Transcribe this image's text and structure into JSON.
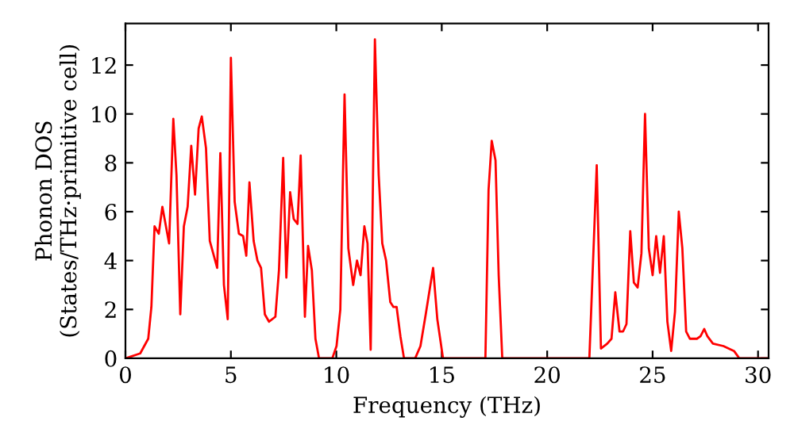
{
  "chart_data": {
    "type": "line",
    "xlabel": "Frequency (THz)",
    "ylabel": "Phonon DOS\n(States/THz·primitive cell)",
    "xlim": [
      0,
      30.5
    ],
    "ylim": [
      0,
      13.7
    ],
    "xticks": [
      0,
      5,
      10,
      15,
      20,
      25,
      30
    ],
    "yticks": [
      0,
      2,
      4,
      6,
      8,
      10,
      12
    ],
    "grid": false,
    "marker": "none",
    "line_style": "solid",
    "series": [
      {
        "color": "#ff0000",
        "x": [
          0,
          0.7,
          1.08,
          1.23,
          1.38,
          1.58,
          1.75,
          2.07,
          2.27,
          2.42,
          2.6,
          2.77,
          2.95,
          3.12,
          3.3,
          3.47,
          3.62,
          3.82,
          4.0,
          4.35,
          4.5,
          4.67,
          4.85,
          5.0,
          5.18,
          5.38,
          5.58,
          5.73,
          5.88,
          6.08,
          6.26,
          6.43,
          6.61,
          6.81,
          7.11,
          7.28,
          7.48,
          7.63,
          7.81,
          7.98,
          8.16,
          8.31,
          8.51,
          8.66,
          8.84,
          9.01,
          9.18,
          9.81,
          10.01,
          10.19,
          10.39,
          10.57,
          10.8,
          10.98,
          11.15,
          11.33,
          11.48,
          11.63,
          11.83,
          12.01,
          12.18,
          12.36,
          12.56,
          12.71,
          12.86,
          13.04,
          13.21,
          13.74,
          13.99,
          14.24,
          14.59,
          14.79,
          15.06,
          17.07,
          17.22,
          17.37,
          17.55,
          17.7,
          17.87,
          22.0,
          22.35,
          22.55,
          22.85,
          23.05,
          23.23,
          23.43,
          23.6,
          23.76,
          23.94,
          24.11,
          24.29,
          24.47,
          24.64,
          24.82,
          25.0,
          25.17,
          25.35,
          25.53,
          25.7,
          25.88,
          26.06,
          26.24,
          26.41,
          26.59,
          26.77,
          27.1,
          27.27,
          27.45,
          27.6,
          27.86,
          28.36,
          28.86,
          29.11,
          30.5
        ],
        "values": [
          0,
          0.2,
          0.8,
          2.1,
          5.4,
          5.1,
          6.2,
          4.7,
          9.8,
          7.5,
          1.8,
          5.4,
          6.2,
          8.7,
          6.7,
          9.4,
          9.9,
          8.6,
          4.8,
          3.7,
          8.4,
          3.0,
          1.6,
          12.3,
          6.4,
          5.1,
          5.0,
          4.2,
          7.2,
          4.8,
          4.0,
          3.7,
          1.8,
          1.5,
          1.7,
          3.6,
          8.2,
          3.3,
          6.8,
          5.7,
          5.5,
          8.3,
          1.7,
          4.6,
          3.6,
          0.8,
          0,
          0,
          0.5,
          2.0,
          10.8,
          4.5,
          3.0,
          4.0,
          3.4,
          5.4,
          4.7,
          0.35,
          13.05,
          7.5,
          4.7,
          4.0,
          2.3,
          2.1,
          2.1,
          0.9,
          0,
          0,
          0.5,
          1.8,
          3.7,
          1.6,
          0,
          0,
          6.9,
          8.9,
          8.1,
          3.4,
          0,
          0,
          7.9,
          0.4,
          0.6,
          0.8,
          2.7,
          1.1,
          1.1,
          1.4,
          5.2,
          3.1,
          2.9,
          4.3,
          10.0,
          4.5,
          3.4,
          5.0,
          3.5,
          5.0,
          1.5,
          0.3,
          1.9,
          6.0,
          4.5,
          1.1,
          0.8,
          0.8,
          0.9,
          1.2,
          0.9,
          0.6,
          0.5,
          0.3,
          0,
          0
        ]
      }
    ]
  }
}
